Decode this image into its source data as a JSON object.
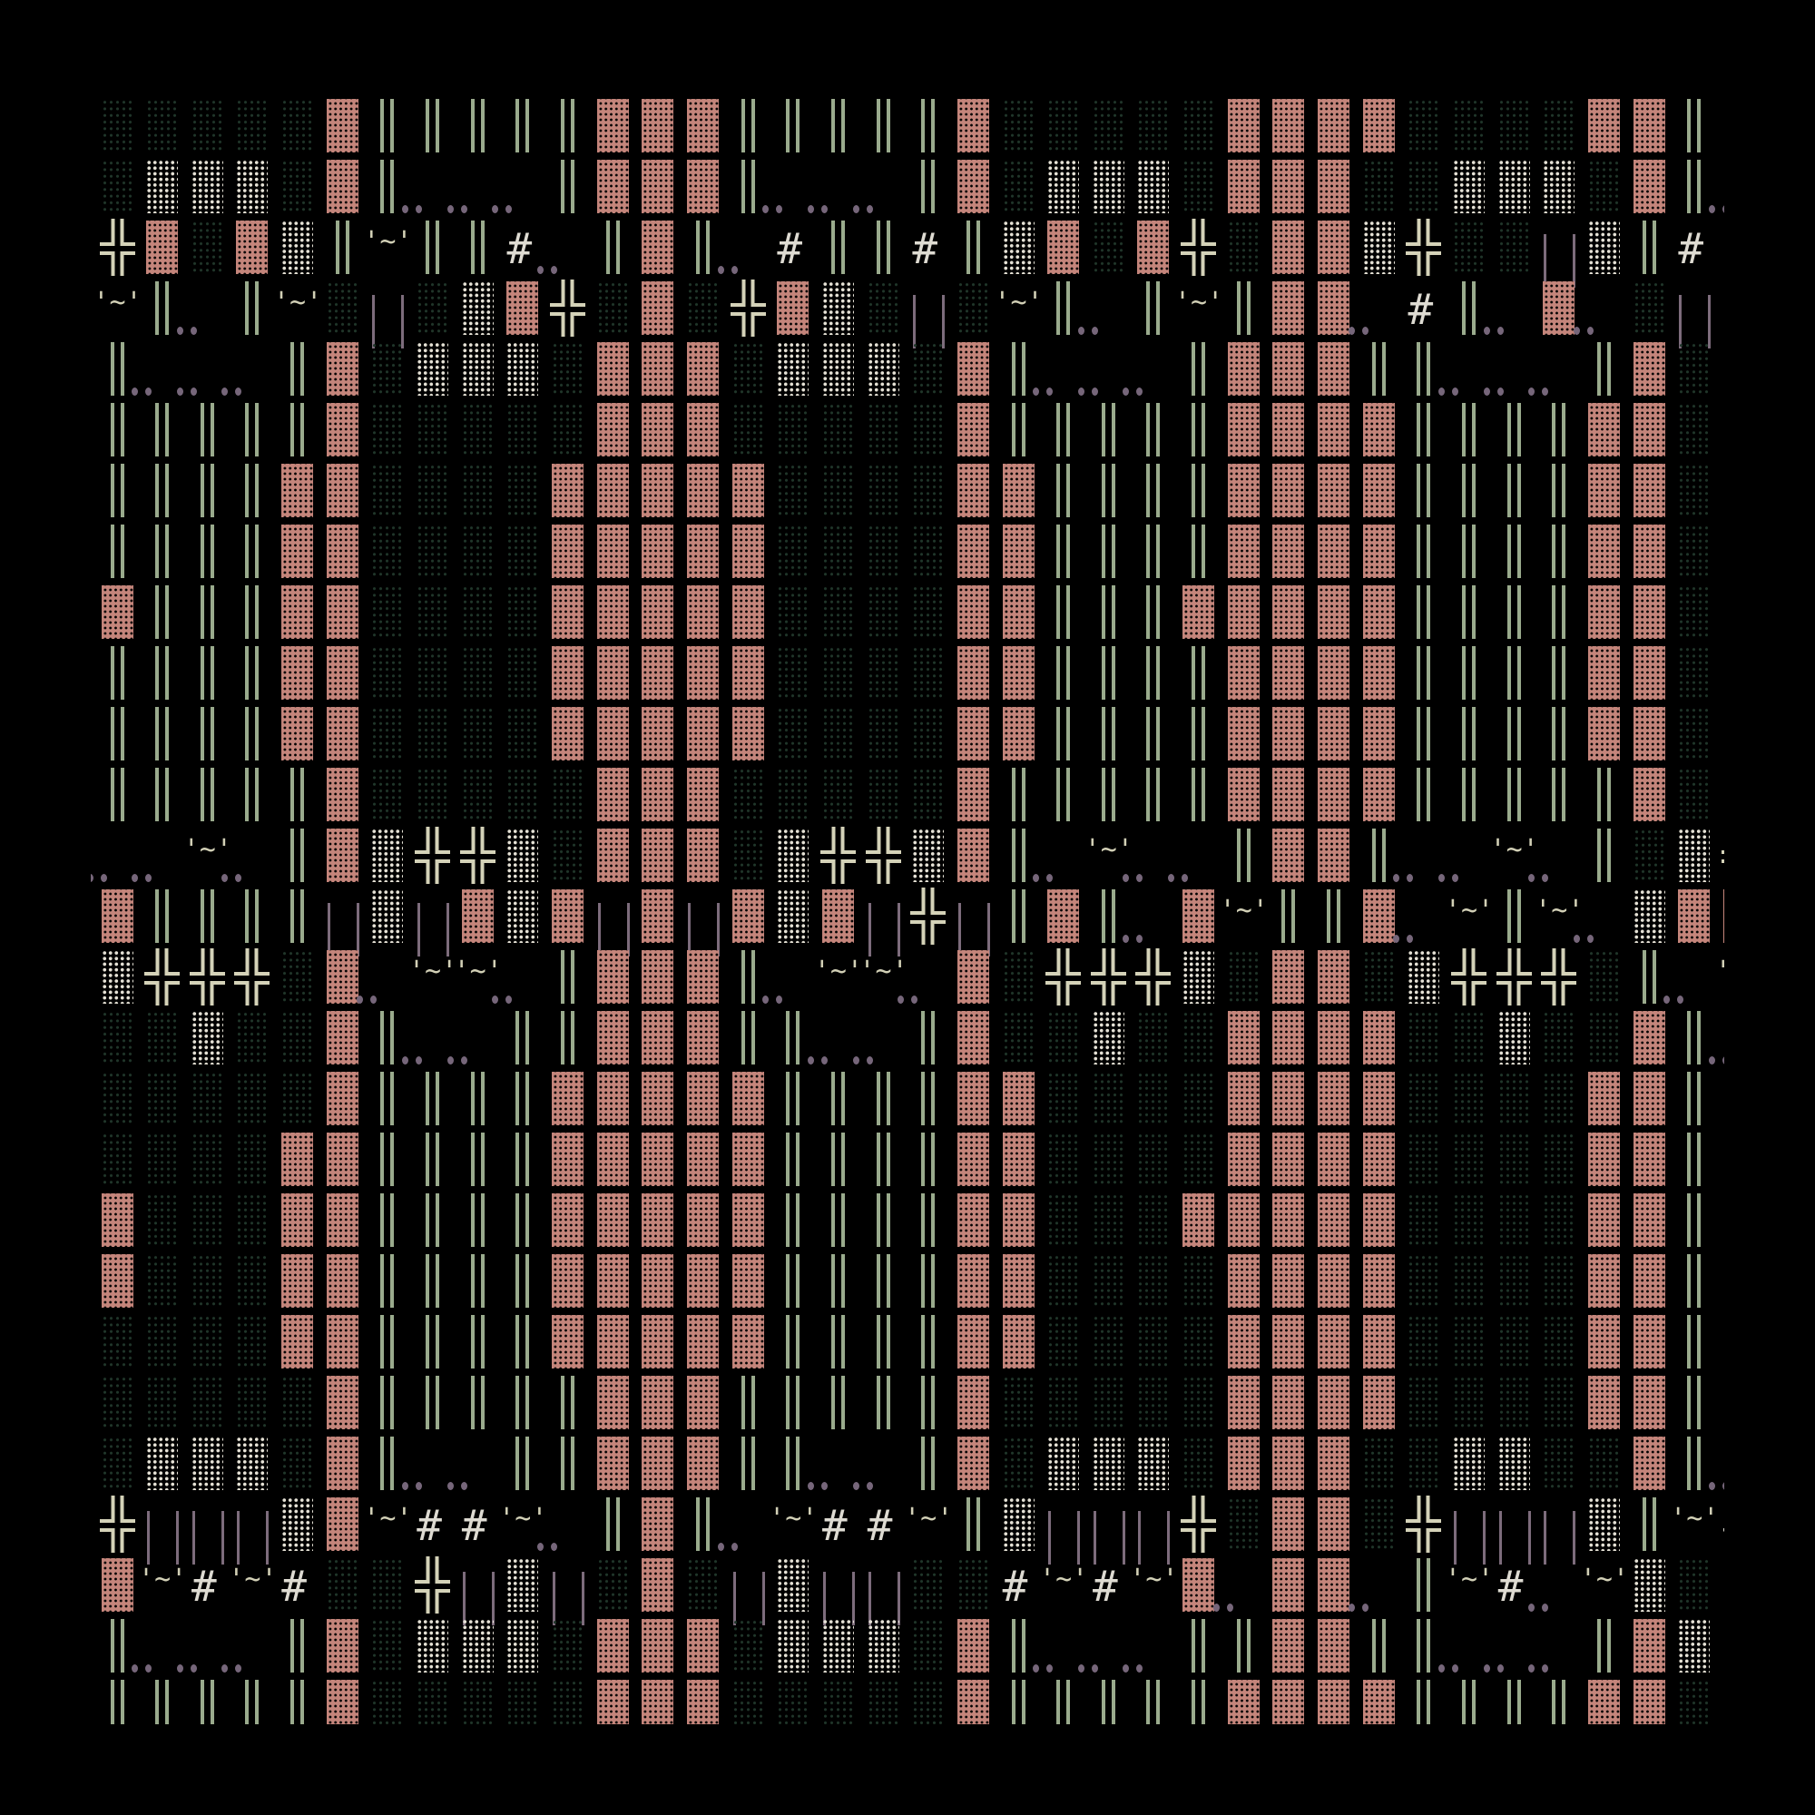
{
  "glyphs": {
    "d": {
      "name": "dim-shade-block",
      "char": "░",
      "color": "#20362a"
    },
    "w": {
      "name": "white-shade-block",
      "char": "▒",
      "color": "#e6e2d6"
    },
    "p": {
      "name": "pink-shade-block",
      "char": "▓",
      "color": "#c4857b"
    },
    "|": {
      "name": "double-vertical-bar",
      "char": "║",
      "color": "#9aab8d"
    },
    "+": {
      "name": "double-cross",
      "char": "╬",
      "color": "#d4d2b8"
    },
    "t": {
      "name": "tilde-face",
      "char": "'~'",
      "color": "#d2d0b6"
    },
    "#": {
      "name": "hash",
      "char": "#",
      "color": "#dedbd2"
    },
    "h": {
      "name": "purple-bracket",
      "char": "||",
      "color": "#7d6c7c"
    },
    ".": {
      "name": "double-dot",
      "char": "..",
      "color": "#76667a"
    },
    "_": {
      "name": "blank",
      "char": " ",
      "color": "#000000"
    }
  },
  "grid": [
    "d d d d d p | | | | | p p p | | | | | p d d d d d p p p p d d d d p p | _",
    "d w w w d p | . . . | p p p | . . . | p d w w w d p p p d d w w w d p | .",
    "+ p d p w | t | | # . | p | . # | | # | w p d p + d p p w + d d h w | # _",
    "t | . | t d h d w p + d p d + p w d h d t | . | t | p p . # | . p . d h d",
    "| . . . | p d w w w d p p p d w w w d p | . . . | p p p | | . . . | p d w",
    "| | | | | p d d d d d p p p d d d d d p | | | | | p p p p | | | | p p d d",
    "| | | | p p d d d d p p p p p d d d d p p | | | | p p p p | | | | p p d d",
    "| | | | p p d d d d p p p p p d d d d p p | | | | p p p p | | | | p p d d",
    "p | | | p p d d d d p p p p p d d d d p p | | | p p p p p | | | | p p d d",
    "| | | | p p d d d d p p p p p d d d d p p | | | | p p p p | | | | p p d d",
    "| | | | p p d d d d p p p p p d d d d p p | | | | p p p p | | | | p p d d",
    "| | | | | p d d d d d p p p d d d d d p | | | | | p p p p | | | | | p d d",
    ". . t . | p w + + w d p p p d w + + w p | . t . . | p p | . . t . | d w +",
    "p | | | | h w h p w p h p h p w p h + h | p | . p t | | p . t | t . w p p",
    "w + + + d p . t t . | p p p | . t t . p d + + + w d p p d w + + + d | . t",
    "d d w d d p | . . | | p p p | | . . | p d d w d d p p p p d d w d d p | .",
    "d d d d d p | | | | p p p p p | | | | p p d d d d p p p p d d d d p p | _",
    "d d d d p p | | | | p p p p p | | | | p p d d d d p p p p d d d d p p | _",
    "p d d d p p | | | | p p p p p | | | | p p d d d p p p p p d d d d p p | _",
    "p d d d p p | | | | p p p p p | | | | p p d d d d p p p p d d d d p p | _",
    "d d d d p p | | | | p p p p p | | | | p p d d d d p p p p d d d d p p | _",
    "d d d d d p | | | | | p p p | | | | | p d d d d d p p p p d d d d p p | _",
    "d w w w d p | . . | | p p p | | . . | p d w w w d p p p d d w w d d p | .",
    "+ h h h w p t # # t . | p | . t # # t | w h h h + d p p d + h h h w | t #",
    "p t # t # d d + h w h d p d h w h h d d # t # t p . p p . | t # . t w d h",
    "| . . . | p d w w w d p p p d w w w d p | . . . | | p p | | . . . | p w w",
    "| | | | | p d d d d d p p p d d d d d p | | | | | p p p p | | | | p p d d"
  ]
}
